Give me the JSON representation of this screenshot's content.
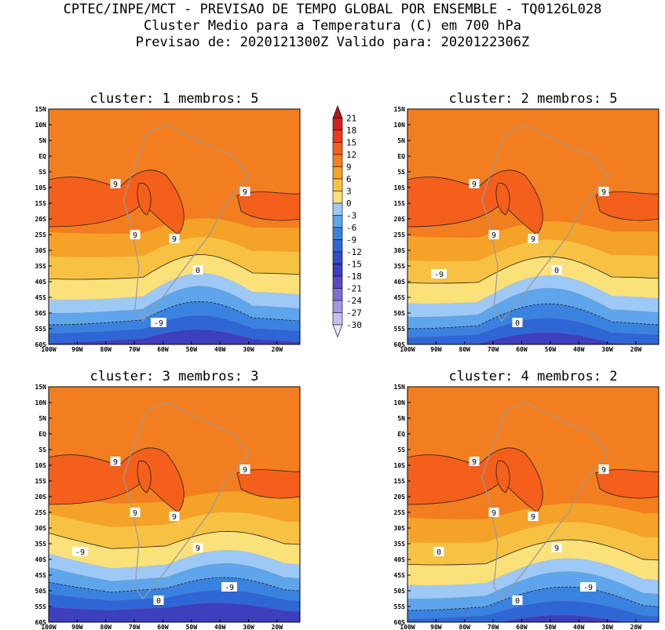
{
  "header": {
    "line1": "CPTEC/INPE/MCT - PREVISAO DE TEMPO GLOBAL POR ENSEMBLE - TQ0126L028",
    "line2": "Cluster Medio para a Temperatura (C) em 700 hPa",
    "line3": "Previsao de: 2020121300Z   Valido para: 2020122306Z"
  },
  "colorbar": {
    "levels": [
      "21",
      "18",
      "15",
      "12",
      "9",
      "6",
      "3",
      "0",
      "-3",
      "-6",
      "-9",
      "-12",
      "-15",
      "-18",
      "-21",
      "-24",
      "-27",
      "-30"
    ],
    "colors": [
      "#b21a1a",
      "#d6201e",
      "#ee3a1c",
      "#f45f1c",
      "#f37e20",
      "#f5a229",
      "#f7c244",
      "#fae17a",
      "#9ec8f5",
      "#5ea5ec",
      "#3a82e0",
      "#2f66d6",
      "#2d4fc8",
      "#3d3fbf",
      "#5849c4",
      "#7f6fd3",
      "#a496e3",
      "#c7bdef",
      "#e7e2f7"
    ]
  },
  "map_axes": {
    "lat_labels": [
      "15N",
      "10N",
      "5N",
      "EQ",
      "5S",
      "10S",
      "15S",
      "20S",
      "25S",
      "30S",
      "35S",
      "40S",
      "45S",
      "50S",
      "55S",
      "60S"
    ],
    "lon_labels": [
      "100W",
      "90W",
      "80W",
      "70W",
      "60W",
      "50W",
      "40W",
      "30W",
      "20W"
    ]
  },
  "panels": [
    {
      "title": "cluster: 1  membros: 5",
      "contour_labels": [
        "9",
        "9",
        "9",
        "9",
        "0",
        "-9"
      ]
    },
    {
      "title": "cluster: 2  membros: 5",
      "contour_labels": [
        "9",
        "9",
        "9",
        "9",
        "0",
        "0",
        "-9"
      ]
    },
    {
      "title": "cluster: 3  membros: 3",
      "contour_labels": [
        "9",
        "9",
        "9",
        "9",
        "9",
        "0",
        "-9",
        "-9"
      ]
    },
    {
      "title": "cluster: 4  membros: 2",
      "contour_labels": [
        "9",
        "9",
        "9",
        "9",
        "9",
        "0",
        "0",
        "-9"
      ]
    }
  ]
}
